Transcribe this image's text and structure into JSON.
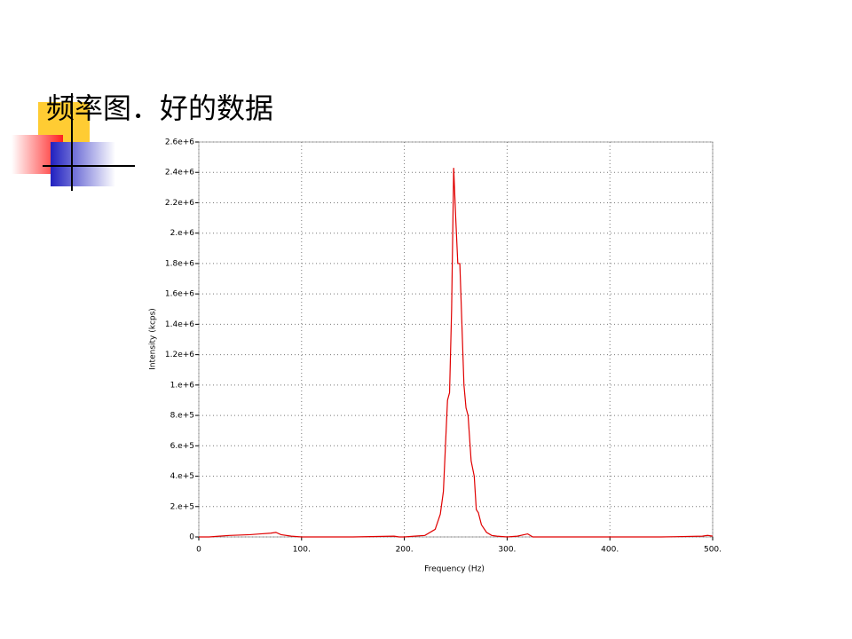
{
  "slide": {
    "title": "频率图．好的数据"
  },
  "chart_data": {
    "type": "line",
    "xlabel": "Frequency (Hz)",
    "ylabel": "Intensity (kcps)",
    "x": [
      0,
      10,
      20,
      30,
      50,
      60,
      70,
      75,
      80,
      90,
      100,
      150,
      190,
      195,
      200,
      210,
      220,
      230,
      235,
      238,
      240,
      242,
      244,
      246,
      248,
      250,
      252,
      254,
      256,
      258,
      260,
      262,
      265,
      268,
      270,
      272,
      275,
      280,
      285,
      290,
      300,
      310,
      320,
      325,
      350,
      400,
      450,
      490,
      495,
      500
    ],
    "series": [
      {
        "name": "Intensity",
        "color": "#e00000",
        "values": [
          0,
          0,
          5000,
          10000,
          15000,
          20000,
          25000,
          30000,
          15000,
          5000,
          0,
          0,
          5000,
          0,
          0,
          5000,
          10000,
          50000,
          150000,
          300000,
          600000,
          900000,
          950000,
          1500000,
          2430000,
          2100000,
          1800000,
          1800000,
          1400000,
          1000000,
          850000,
          800000,
          500000,
          400000,
          180000,
          160000,
          80000,
          30000,
          10000,
          5000,
          0,
          5000,
          20000,
          0,
          0,
          0,
          0,
          5000,
          10000,
          5000
        ]
      }
    ],
    "xlim": [
      0,
      500
    ],
    "xticks": [
      0,
      {
        "value": 100,
        "label": "100."
      },
      {
        "value": 200,
        "label": "200."
      },
      {
        "value": 300,
        "label": "300."
      },
      {
        "value": 400,
        "label": "400."
      },
      {
        "value": 500,
        "label": "500."
      }
    ],
    "ylim": [
      0,
      2600000
    ],
    "yticks": [
      0,
      {
        "value": 200000,
        "label": "2.e+5"
      },
      {
        "value": 400000,
        "label": "4.e+5"
      },
      {
        "value": 600000,
        "label": "6.e+5"
      },
      {
        "value": 800000,
        "label": "8.e+5"
      },
      {
        "value": 1000000,
        "label": "1.e+6"
      },
      {
        "value": 1200000,
        "label": "1.2e+6"
      },
      {
        "value": 1400000,
        "label": "1.4e+6"
      },
      {
        "value": 1600000,
        "label": "1.6e+6"
      },
      {
        "value": 1800000,
        "label": "1.8e+6"
      },
      {
        "value": 2000000,
        "label": "2.e+6"
      },
      {
        "value": 2200000,
        "label": "2.2e+6"
      },
      {
        "value": 2400000,
        "label": "2.4e+6"
      },
      {
        "value": 2600000,
        "label": "2.6e+6"
      }
    ],
    "grid": true
  }
}
